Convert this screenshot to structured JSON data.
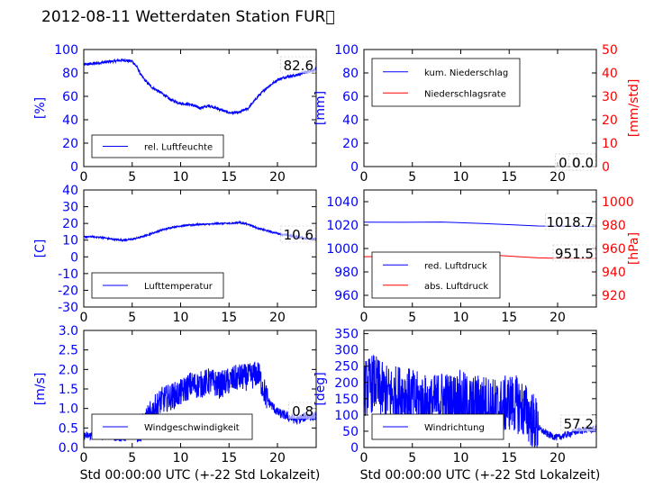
{
  "figure": {
    "title": "2012-08-11 Wetterdaten Station FUR\u0000"
  },
  "colors": {
    "blue": "#0000ff",
    "red": "#ff0000",
    "axis": "#000000"
  },
  "chart_data": [
    {
      "id": "humidity",
      "type": "line",
      "ylabel_left": "[%]",
      "ylim_left": [
        0,
        100
      ],
      "yticks_left": [
        0,
        20,
        40,
        60,
        80,
        100
      ],
      "xlim": [
        0,
        24
      ],
      "xticks": [
        0,
        5,
        10,
        15,
        20
      ],
      "value_label": "82.6",
      "legend": [
        {
          "name": "rel. Luftfeuchte",
          "color": "#0000ff"
        }
      ],
      "legend_position": "lower-left",
      "series": [
        {
          "name": "rel. Luftfeuchte",
          "color": "#0000ff",
          "axis": "left",
          "noise": 1.2,
          "x": [
            0,
            1,
            2,
            3,
            4,
            5,
            5.5,
            6,
            6.5,
            7,
            8,
            9,
            10,
            11,
            12,
            13,
            14,
            15,
            16,
            17,
            18,
            19,
            20,
            21,
            22,
            23,
            24
          ],
          "y": [
            87,
            88,
            89,
            90,
            91,
            90,
            85,
            77,
            72,
            68,
            63,
            57,
            54,
            53,
            50,
            52,
            49,
            46,
            46,
            50,
            60,
            68,
            74,
            77,
            78,
            81,
            83
          ]
        }
      ]
    },
    {
      "id": "precipitation",
      "type": "line",
      "ylabel_left": "[mm]",
      "ylabel_right": "[mm/std]",
      "ylim_left": [
        0,
        100
      ],
      "yticks_left": [
        0,
        20,
        40,
        60,
        80,
        100
      ],
      "ylim_right": [
        0,
        50
      ],
      "yticks_right": [
        0,
        10,
        20,
        30,
        40,
        50
      ],
      "xlim": [
        0,
        24
      ],
      "xticks": [
        0,
        5,
        10,
        15,
        20
      ],
      "value_labels": [
        "0.0",
        "0.0"
      ],
      "legend": [
        {
          "name": "kum. Niederschlag",
          "color": "#0000ff"
        },
        {
          "name": "Niederschlagsrate",
          "color": "#ff0000"
        }
      ],
      "legend_position": "upper-left",
      "series": [
        {
          "name": "kum. Niederschlag",
          "color": "#0000ff",
          "axis": "left",
          "x": [
            0,
            24
          ],
          "y": [
            0,
            0
          ]
        },
        {
          "name": "Niederschlagsrate",
          "color": "#ff0000",
          "axis": "right",
          "x": [
            0,
            24
          ],
          "y": [
            0,
            0
          ]
        }
      ]
    },
    {
      "id": "temperature",
      "type": "line",
      "ylabel_left": "[C]",
      "ylim_left": [
        -30,
        40
      ],
      "yticks_left": [
        -30,
        -20,
        -10,
        0,
        10,
        20,
        30,
        40
      ],
      "xlim": [
        0,
        24
      ],
      "xticks": [
        0,
        5,
        10,
        15,
        20
      ],
      "value_label": "10.6",
      "legend": [
        {
          "name": "Lufttemperatur",
          "color": "#0000ff"
        }
      ],
      "legend_position": "lower-left",
      "series": [
        {
          "name": "Lufttemperatur",
          "color": "#0000ff",
          "axis": "left",
          "noise": 0.5,
          "x": [
            0,
            1,
            2,
            3,
            4,
            5,
            6,
            7,
            8,
            9,
            10,
            11,
            12,
            13,
            14,
            15,
            16,
            17,
            18,
            19,
            20,
            21,
            22,
            23,
            24
          ],
          "y": [
            12,
            12,
            11.5,
            10.5,
            10,
            10.5,
            12,
            14,
            16,
            17.5,
            18.5,
            19,
            19.5,
            19.5,
            20,
            20,
            20.5,
            19.5,
            17,
            15.5,
            14,
            13,
            12,
            11,
            10.6
          ]
        }
      ]
    },
    {
      "id": "pressure",
      "type": "line",
      "ylabel_right": "[hPa]",
      "ylim_left": [
        950,
        1050
      ],
      "yticks_left": [
        960,
        980,
        1000,
        1020,
        1040
      ],
      "ylim_right": [
        910,
        1010
      ],
      "yticks_right": [
        920,
        940,
        960,
        980,
        1000
      ],
      "xlim": [
        0,
        24
      ],
      "xticks": [
        0,
        5,
        10,
        15,
        20
      ],
      "value_labels": [
        "1018.7",
        "951.5"
      ],
      "legend": [
        {
          "name": "red. Luftdruck",
          "color": "#0000ff"
        },
        {
          "name": "abs. Luftdruck",
          "color": "#ff0000"
        }
      ],
      "legend_position": "lower-left",
      "series": [
        {
          "name": "red. Luftdruck",
          "color": "#0000ff",
          "axis": "left",
          "x": [
            0,
            4,
            8,
            12,
            16,
            18,
            20,
            22,
            24
          ],
          "y": [
            1022.5,
            1022.4,
            1022.6,
            1021.5,
            1020,
            1019.2,
            1019,
            1019,
            1018.7
          ]
        },
        {
          "name": "abs. Luftdruck",
          "color": "#ff0000",
          "axis": "right",
          "x": [
            0,
            4,
            8,
            12,
            14,
            16,
            18,
            20,
            22,
            24
          ],
          "y": [
            953,
            953.5,
            954.5,
            955,
            954,
            953,
            952,
            951.6,
            951.5,
            951.5
          ]
        }
      ]
    },
    {
      "id": "windspeed",
      "type": "line",
      "ylabel_left": "[m/s]",
      "xlabel": "Std 00:00:00 UTC (+-22 Std Lokalzeit)",
      "ylim_left": [
        0,
        3
      ],
      "yticks_left": [
        0.0,
        0.5,
        1.0,
        1.5,
        2.0,
        2.5,
        3.0
      ],
      "xlim": [
        0,
        24
      ],
      "xticks": [
        0,
        5,
        10,
        15,
        20
      ],
      "value_label": "0.8",
      "legend": [
        {
          "name": "Windgeschwindigkeit",
          "color": "#0000ff"
        }
      ],
      "legend_position": "lower-left",
      "series": [
        {
          "name": "Windgeschwindigkeit",
          "color": "#0000ff",
          "axis": "left",
          "noise": 0.35,
          "x": [
            0,
            2,
            4,
            5,
            6,
            7,
            8,
            9,
            10,
            11,
            12,
            13,
            14,
            15,
            16,
            17,
            18,
            19,
            20,
            21,
            22,
            23,
            24
          ],
          "y": [
            0.3,
            0.3,
            0.25,
            0.3,
            0.5,
            0.9,
            1.2,
            1.3,
            1.4,
            1.6,
            1.6,
            1.7,
            1.6,
            1.7,
            1.8,
            1.8,
            1.9,
            1.2,
            0.9,
            0.8,
            0.7,
            0.8,
            0.8
          ]
        }
      ]
    },
    {
      "id": "winddirection",
      "type": "line",
      "ylabel_left": "[deg]",
      "xlabel": "Std 00:00:00 UTC (+-22 Std Lokalzeit)",
      "ylim_left": [
        0,
        360
      ],
      "yticks_left": [
        0,
        50,
        100,
        150,
        200,
        250,
        300,
        350
      ],
      "xlim": [
        0,
        24
      ],
      "xticks": [
        0,
        5,
        10,
        15,
        20
      ],
      "value_label": "57.2",
      "legend": [
        {
          "name": "Windrichtung",
          "color": "#0000ff"
        }
      ],
      "legend_position": "lower-left",
      "series": [
        {
          "name": "Windrichtung",
          "color": "#0000ff",
          "axis": "left",
          "noise": 90,
          "x": [
            0,
            1,
            2,
            3,
            4,
            5,
            6,
            7,
            8,
            9,
            10,
            11,
            12,
            13,
            14,
            15,
            16,
            17,
            18,
            19,
            20,
            21,
            22,
            23,
            24
          ],
          "y": [
            180,
            200,
            170,
            160,
            170,
            150,
            140,
            130,
            150,
            140,
            150,
            130,
            140,
            130,
            120,
            140,
            130,
            100,
            60,
            40,
            30,
            40,
            50,
            55,
            57
          ]
        }
      ]
    }
  ]
}
